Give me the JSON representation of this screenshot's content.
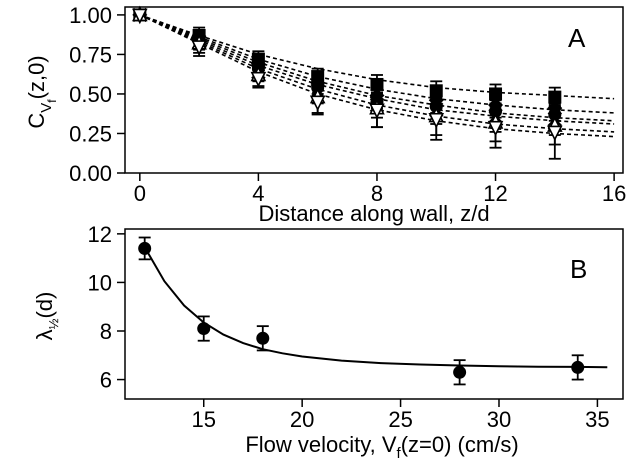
{
  "chart_data": [
    {
      "panel": "A",
      "type": "scatter",
      "xlabel": "Distance along wall, z/d",
      "ylabel_main": "C",
      "ylabel_sub1": "V",
      "ylabel_sub2": "f",
      "ylabel_tail": "(z,0)",
      "xlim": [
        -0.5,
        16.3
      ],
      "ylim": [
        0,
        1.05
      ],
      "xticks": [
        0,
        4,
        8,
        12,
        16
      ],
      "xtick_labels": [
        "0",
        "4",
        "8",
        "12",
        "16"
      ],
      "yticks": [
        0.0,
        0.25,
        0.5,
        0.75,
        1.0
      ],
      "ytick_labels": [
        "0.00",
        "0.25",
        "0.50",
        "0.75",
        "1.00"
      ],
      "grid": false,
      "series": [
        {
          "marker": "square-filled",
          "fit": "dashed",
          "x": [
            0,
            2,
            4,
            6,
            8,
            10,
            12,
            14
          ],
          "y": [
            1.0,
            0.87,
            0.72,
            0.61,
            0.56,
            0.52,
            0.5,
            0.48
          ],
          "err": [
            0,
            0.05,
            0.05,
            0.05,
            0.06,
            0.06,
            0.06,
            0.06
          ],
          "fit_y": [
            1.0,
            0.87,
            0.75,
            0.66,
            0.59,
            0.54,
            0.51,
            0.49,
            0.47
          ]
        },
        {
          "marker": "diamond-filled",
          "fit": "dashed",
          "x": [
            0,
            2,
            4,
            6,
            8,
            10,
            12,
            14
          ],
          "y": [
            1.0,
            0.86,
            0.69,
            0.57,
            0.49,
            0.46,
            0.43,
            0.41
          ],
          "err": [
            0,
            0.04,
            0.04,
            0.04,
            0.04,
            0.04,
            0.04,
            0.04
          ],
          "fit_y": [
            1.0,
            0.86,
            0.72,
            0.61,
            0.53,
            0.47,
            0.43,
            0.4,
            0.38
          ]
        },
        {
          "marker": "circle-filled",
          "fit": "dashed",
          "x": [
            0,
            2,
            4,
            6,
            8,
            10,
            12,
            14
          ],
          "y": [
            1.0,
            0.84,
            0.66,
            0.54,
            0.45,
            0.42,
            0.39,
            0.37
          ],
          "err": [
            0,
            0.04,
            0.04,
            0.04,
            0.04,
            0.04,
            0.04,
            0.04
          ],
          "fit_y": [
            1.0,
            0.85,
            0.7,
            0.58,
            0.49,
            0.43,
            0.38,
            0.35,
            0.33
          ]
        },
        {
          "marker": "cross",
          "fit": "dashed",
          "x": [
            0,
            2,
            4,
            6,
            8,
            10,
            12,
            14
          ],
          "y": [
            1.0,
            0.83,
            0.64,
            0.52,
            0.43,
            0.4,
            0.36,
            0.34
          ],
          "err": [
            0,
            0.05,
            0.06,
            0.08,
            0.08,
            0.09,
            0.1,
            0.1
          ],
          "fit_y": [
            1.0,
            0.84,
            0.68,
            0.56,
            0.47,
            0.4,
            0.36,
            0.33,
            0.31
          ]
        },
        {
          "marker": "triangle-up-open",
          "fit": "dashed",
          "x": [
            0,
            2,
            4,
            6,
            8,
            10,
            12,
            14
          ],
          "y": [
            1.0,
            0.82,
            0.62,
            0.48,
            0.41,
            0.36,
            0.32,
            0.3
          ],
          "err": [
            0,
            0.06,
            0.07,
            0.1,
            0.12,
            0.12,
            0.12,
            0.12
          ],
          "fit_y": [
            1.0,
            0.83,
            0.66,
            0.53,
            0.43,
            0.36,
            0.31,
            0.28,
            0.26
          ]
        },
        {
          "marker": "triangle-down-open",
          "fit": "dashed",
          "x": [
            0,
            2,
            4,
            6,
            8,
            10,
            12,
            14
          ],
          "y": [
            1.0,
            0.8,
            0.6,
            0.45,
            0.4,
            0.34,
            0.29,
            0.26
          ],
          "err": [
            0,
            0.06,
            0.06,
            0.08,
            0.11,
            0.13,
            0.13,
            0.17
          ],
          "fit_y": [
            1.0,
            0.82,
            0.64,
            0.5,
            0.4,
            0.33,
            0.28,
            0.25,
            0.23
          ]
        }
      ]
    },
    {
      "panel": "B",
      "type": "scatter",
      "xlabel": "Flow velocity, V",
      "xlabel_sub": "f",
      "xlabel_tail": "(z=0)  (cm/s)",
      "ylabel_main": "λ",
      "ylabel_sub": "½",
      "ylabel_tail": "(d)",
      "xlim": [
        11,
        36.3
      ],
      "ylim": [
        5.2,
        12.2
      ],
      "xticks": [
        15,
        20,
        25,
        30,
        35
      ],
      "xtick_labels": [
        "15",
        "20",
        "25",
        "30",
        "35"
      ],
      "yticks": [
        6,
        8,
        10,
        12
      ],
      "ytick_labels": [
        "6",
        "8",
        "10",
        "12"
      ],
      "grid": false,
      "points": {
        "marker": "circle-filled",
        "x": [
          12,
          15,
          18,
          28,
          34
        ],
        "y": [
          11.4,
          8.1,
          7.7,
          6.3,
          6.5
        ],
        "err": [
          0.45,
          0.5,
          0.5,
          0.5,
          0.5
        ]
      },
      "fit": {
        "style": "solid",
        "x": [
          12,
          13,
          14,
          15,
          16,
          17,
          18,
          19,
          20,
          22,
          24,
          26,
          28,
          30,
          32,
          34,
          35.5
        ],
        "y": [
          11.45,
          10.05,
          9.05,
          8.35,
          7.85,
          7.5,
          7.25,
          7.08,
          6.95,
          6.78,
          6.68,
          6.62,
          6.58,
          6.55,
          6.53,
          6.52,
          6.51
        ]
      }
    }
  ]
}
